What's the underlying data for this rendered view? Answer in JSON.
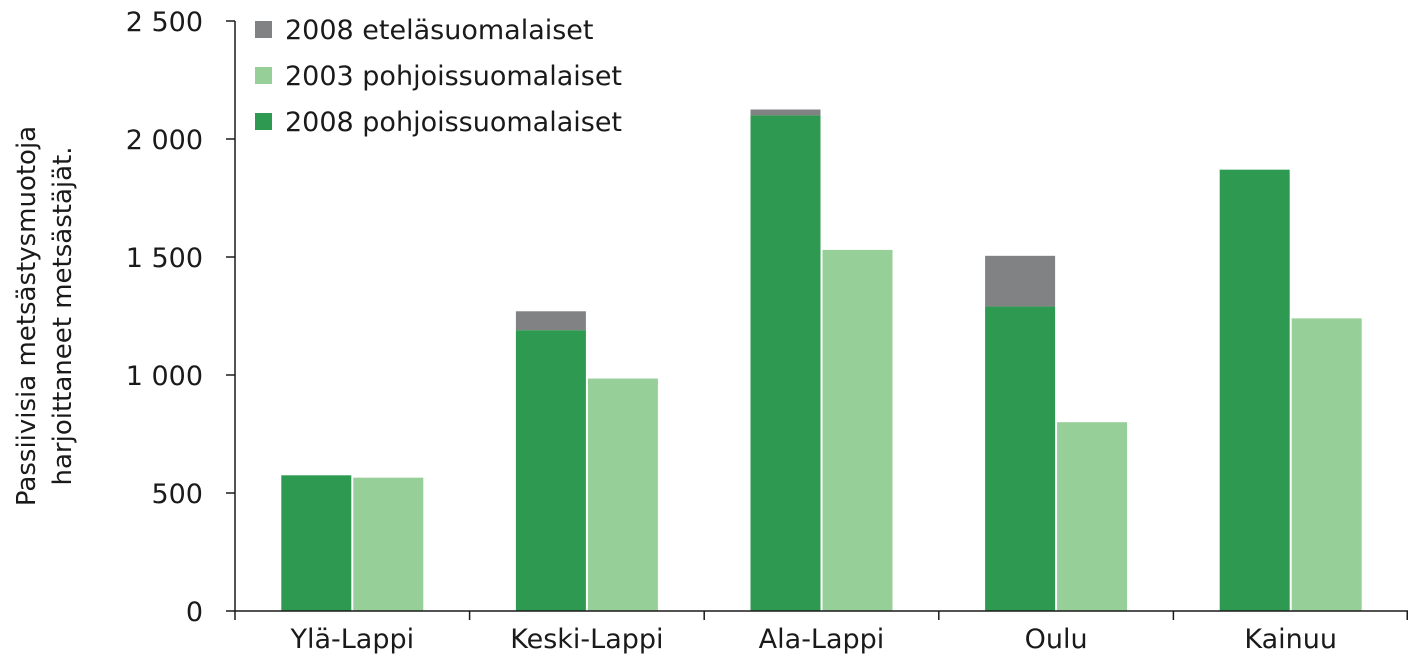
{
  "chart_data": {
    "type": "bar",
    "subtype": "stacked-grouped",
    "categories": [
      "Ylä-Lappi",
      "Keski-Lappi",
      "Ala-Lappi",
      "Oulu",
      "Kainuu"
    ],
    "ylabel_lines": [
      "Passiivisia metsästysmuotoja",
      "harjoittaneet metsästäjät."
    ],
    "ylim": [
      0,
      2500
    ],
    "yticks": [
      0,
      500,
      1000,
      1500,
      2000,
      2500
    ],
    "ytick_labels": [
      "0",
      "500",
      "1 000",
      "1 500",
      "2 000",
      "2 500"
    ],
    "grid": false,
    "legend_position": "top-left",
    "legend": [
      {
        "key": "south2008",
        "label": "2008 eteläsuomalaiset",
        "color": "#808284"
      },
      {
        "key": "north2003",
        "label": "2003 pohjoissuomalaiset",
        "color": "#96d098"
      },
      {
        "key": "north2008",
        "label": "2008 pohjoissuomalaiset",
        "color": "#2e9950"
      }
    ],
    "series": [
      {
        "name": "2008 pohjoissuomalaiset",
        "key": "north2008",
        "stack": "2008",
        "values": [
          575,
          1190,
          2100,
          1290,
          1870
        ]
      },
      {
        "name": "2008 eteläsuomalaiset",
        "key": "south2008",
        "stack": "2008",
        "values": [
          0,
          80,
          25,
          215,
          0
        ]
      },
      {
        "name": "2003 pohjoissuomalaiset",
        "key": "north2003",
        "stack": "2003",
        "values": [
          565,
          985,
          1530,
          800,
          1240
        ]
      }
    ]
  }
}
